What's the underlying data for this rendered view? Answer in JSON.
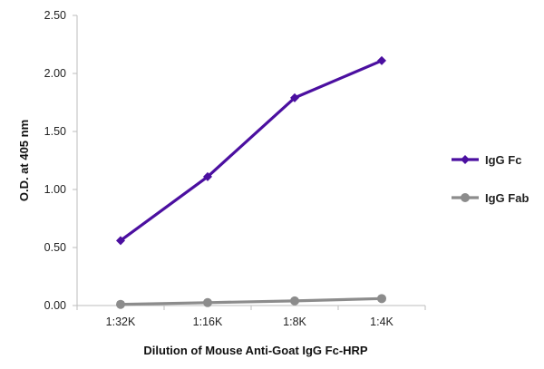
{
  "chart_data": {
    "type": "line",
    "categories": [
      "1:32K",
      "1:16K",
      "1:8K",
      "1:4K"
    ],
    "series": [
      {
        "name": "IgG Fc",
        "values": [
          0.56,
          1.11,
          1.79,
          2.11
        ],
        "color": "#4B0FA0",
        "marker": "diamond"
      },
      {
        "name": "IgG Fab",
        "values": [
          0.01,
          0.025,
          0.04,
          0.06
        ],
        "color": "#8C8C8C",
        "marker": "circle"
      }
    ],
    "xlabel": "Dilution of Mouse Anti-Goat IgG Fc-HRP",
    "ylabel": "O.D. at 405 nm",
    "ylim": [
      0,
      2.5
    ],
    "yticks": [
      "0.00",
      "0.50",
      "1.00",
      "1.50",
      "2.00",
      "2.50"
    ],
    "grid": false,
    "legend_position": "right"
  }
}
